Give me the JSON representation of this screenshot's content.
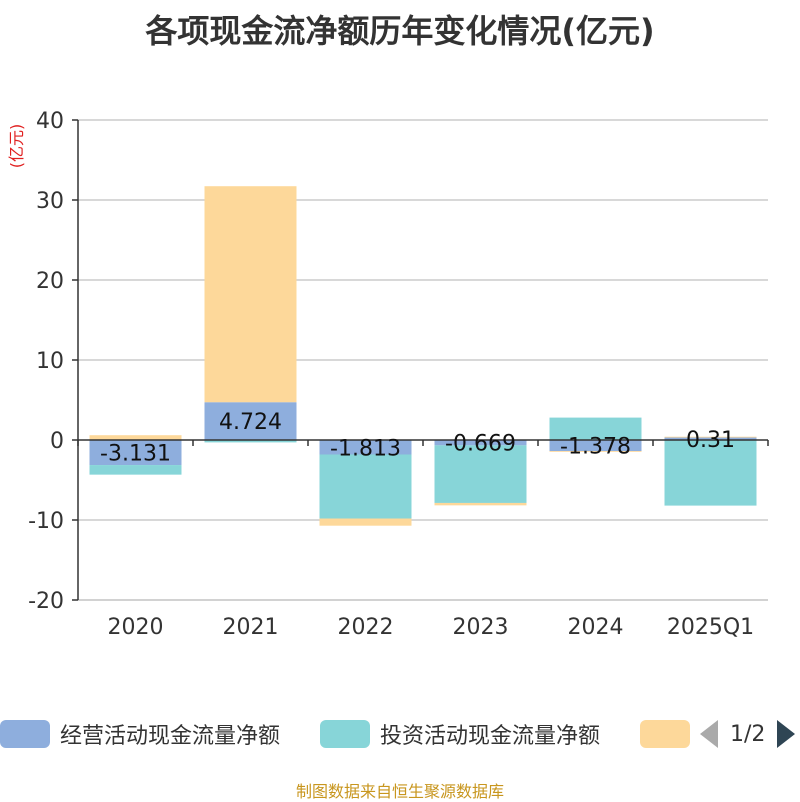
{
  "chart_data": {
    "type": "bar",
    "stacked": true,
    "title": "各项现金流净额历年变化情况(亿元)",
    "ylabel": "(亿元)",
    "xlabel": "",
    "categories": [
      "2020",
      "2021",
      "2022",
      "2023",
      "2024",
      "2025Q1"
    ],
    "ylim": [
      -20,
      40
    ],
    "yticks": [
      -20,
      -10,
      0,
      10,
      20,
      30,
      40
    ],
    "grid": true,
    "series": [
      {
        "name": "经营活动现金流量净额",
        "color": "#8eaedd",
        "values": [
          -3.131,
          4.724,
          -1.813,
          -0.669,
          -1.378,
          0.31
        ],
        "show_labels": true
      },
      {
        "name": "投资活动现金流量净额",
        "color": "#87d5d8",
        "values": [
          -1.2,
          -0.3,
          -8.0,
          -7.2,
          2.8,
          -8.2
        ],
        "show_labels": false
      },
      {
        "name": "",
        "color": "#fdd89a",
        "values": [
          0.6,
          27.0,
          -0.9,
          -0.3,
          -0.1,
          0.1
        ],
        "show_labels": false
      }
    ],
    "labels": [
      "-3.131",
      "4.724",
      "-1.813",
      "-0.669",
      "-1.378",
      "0.31"
    ],
    "legend_position": "bottom"
  },
  "legend": {
    "items": [
      {
        "label": "经营活动现金流量净额",
        "color": "#8eaedd"
      },
      {
        "label": "投资活动现金流量净额",
        "color": "#87d5d8"
      },
      {
        "label": "",
        "color": "#fdd89a"
      }
    ],
    "pager_text": "1/2"
  },
  "source": "制图数据来自恒生聚源数据库"
}
